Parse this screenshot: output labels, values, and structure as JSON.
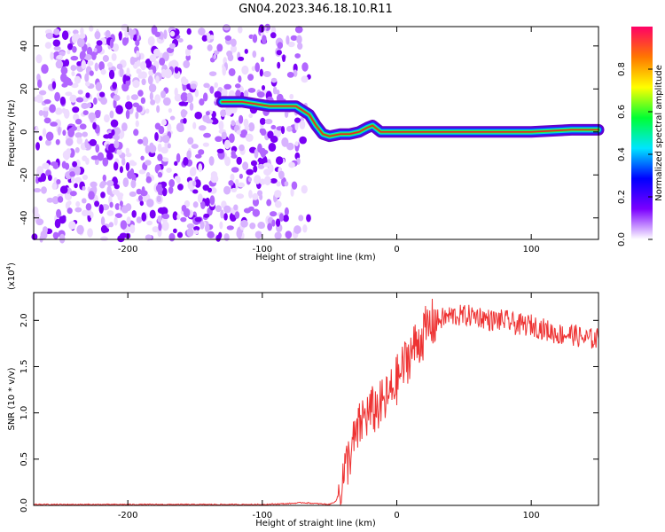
{
  "title": "GN04.2023.346.18.10.R11",
  "chart_data": [
    {
      "type": "heatmap",
      "xlabel": "Height of straight line (km)",
      "ylabel": "Frequency (Hz)",
      "xlim": [
        -270,
        150
      ],
      "ylim": [
        -50,
        49
      ],
      "xticks": [
        -200,
        -100,
        0,
        100
      ],
      "yticks": [
        -40,
        -20,
        0,
        20,
        40
      ],
      "colorbar": {
        "label": "Normalized spectral amplitude",
        "range": [
          0,
          1
        ],
        "ticks": [
          0.0,
          0.2,
          0.4,
          0.6,
          0.8
        ],
        "colors": [
          "#ffffff",
          "#7b00ff",
          "#0000ff",
          "#00e5ff",
          "#00ff33",
          "#ffff00",
          "#ff7700",
          "#ff0066"
        ]
      },
      "noise_region_x": [
        -270,
        -65
      ],
      "ridge": [
        {
          "x": -130,
          "y": 14
        },
        {
          "x": -115,
          "y": 14
        },
        {
          "x": -95,
          "y": 12
        },
        {
          "x": -75,
          "y": 12
        },
        {
          "x": -65,
          "y": 8
        },
        {
          "x": -60,
          "y": 3
        },
        {
          "x": -55,
          "y": -1
        },
        {
          "x": -50,
          "y": -2
        },
        {
          "x": -42,
          "y": -1
        },
        {
          "x": -35,
          "y": -1
        },
        {
          "x": -28,
          "y": 0
        },
        {
          "x": -22,
          "y": 2
        },
        {
          "x": -18,
          "y": 3
        },
        {
          "x": -12,
          "y": 0
        },
        {
          "x": 0,
          "y": 0
        },
        {
          "x": 20,
          "y": 0
        },
        {
          "x": 50,
          "y": 0
        },
        {
          "x": 100,
          "y": 0
        },
        {
          "x": 130,
          "y": 1
        },
        {
          "x": 150,
          "y": 1
        }
      ]
    },
    {
      "type": "line",
      "xlabel": "Height of straight line (km)",
      "ylabel": "SNR (10 * v/v)",
      "scale_note": "(x10",
      "scale_exp": "4",
      "scale_close": ")",
      "xlim": [
        -270,
        150
      ],
      "ylim": [
        0,
        2.3
      ],
      "xticks": [
        -200,
        -100,
        0,
        100
      ],
      "yticks": [
        0.0,
        0.5,
        1.0,
        1.5,
        2.0
      ],
      "series": [
        {
          "color": "#ee3333",
          "x": [
            -270,
            -250,
            -200,
            -150,
            -100,
            -80,
            -70,
            -60,
            -50,
            -45,
            -40,
            -35,
            -30,
            -25,
            -20,
            -15,
            -10,
            -5,
            0,
            5,
            10,
            15,
            20,
            25,
            30,
            40,
            50,
            60,
            70,
            80,
            90,
            100,
            110,
            120,
            130,
            140,
            150
          ],
          "y": [
            0.01,
            0.01,
            0.01,
            0.01,
            0.01,
            0.02,
            0.03,
            0.02,
            0.01,
            0.05,
            0.3,
            0.55,
            0.75,
            0.95,
            1.0,
            1.05,
            1.1,
            1.2,
            1.35,
            1.5,
            1.65,
            1.75,
            1.85,
            1.95,
            2.0,
            2.05,
            2.05,
            2.05,
            2.0,
            2.0,
            1.95,
            1.95,
            1.9,
            1.85,
            1.85,
            1.8,
            1.8
          ]
        }
      ]
    }
  ]
}
